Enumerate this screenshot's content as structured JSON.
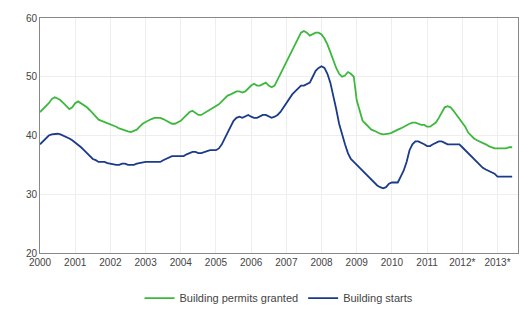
{
  "chart_data": {
    "type": "line",
    "x": [
      2000.0,
      2000.083,
      2000.167,
      2000.25,
      2000.333,
      2000.417,
      2000.5,
      2000.583,
      2000.667,
      2000.75,
      2000.833,
      2000.917,
      2001.0,
      2001.083,
      2001.167,
      2001.25,
      2001.333,
      2001.417,
      2001.5,
      2001.583,
      2001.667,
      2001.75,
      2001.833,
      2001.917,
      2002.0,
      2002.083,
      2002.167,
      2002.25,
      2002.333,
      2002.417,
      2002.5,
      2002.583,
      2002.667,
      2002.75,
      2002.833,
      2002.917,
      2003.0,
      2003.083,
      2003.167,
      2003.25,
      2003.333,
      2003.417,
      2003.5,
      2003.583,
      2003.667,
      2003.75,
      2003.833,
      2003.917,
      2004.0,
      2004.083,
      2004.167,
      2004.25,
      2004.333,
      2004.417,
      2004.5,
      2004.583,
      2004.667,
      2004.75,
      2004.833,
      2004.917,
      2005.0,
      2005.083,
      2005.167,
      2005.25,
      2005.333,
      2005.417,
      2005.5,
      2005.583,
      2005.667,
      2005.75,
      2005.833,
      2005.917,
      2006.0,
      2006.083,
      2006.167,
      2006.25,
      2006.333,
      2006.417,
      2006.5,
      2006.583,
      2006.667,
      2006.75,
      2006.833,
      2006.917,
      2007.0,
      2007.083,
      2007.167,
      2007.25,
      2007.333,
      2007.417,
      2007.5,
      2007.583,
      2007.667,
      2007.75,
      2007.833,
      2007.917,
      2008.0,
      2008.083,
      2008.167,
      2008.25,
      2008.333,
      2008.417,
      2008.5,
      2008.583,
      2008.667,
      2008.75,
      2008.833,
      2008.917,
      2009.0,
      2009.083,
      2009.167,
      2009.25,
      2009.333,
      2009.417,
      2009.5,
      2009.583,
      2009.667,
      2009.75,
      2009.833,
      2009.917,
      2010.0,
      2010.083,
      2010.167,
      2010.25,
      2010.333,
      2010.417,
      2010.5,
      2010.583,
      2010.667,
      2010.75,
      2010.833,
      2010.917,
      2011.0,
      2011.083,
      2011.167,
      2011.25,
      2011.333,
      2011.417,
      2011.5,
      2011.583,
      2011.667,
      2011.75,
      2011.833,
      2011.917,
      2012.0,
      2012.083,
      2012.167,
      2012.25,
      2012.333,
      2012.417,
      2012.5,
      2012.583,
      2012.667,
      2012.75,
      2012.833,
      2012.917,
      2013.0,
      2013.083,
      2013.167,
      2013.25,
      2013.333,
      2013.417
    ],
    "series": [
      {
        "name": "Building permits granted",
        "color": "#3db83d",
        "values": [
          44.0,
          44.5,
          45.0,
          45.5,
          46.2,
          46.5,
          46.3,
          46.0,
          45.5,
          45.0,
          44.5,
          44.8,
          45.5,
          45.8,
          45.5,
          45.2,
          44.8,
          44.3,
          43.8,
          43.2,
          42.7,
          42.5,
          42.3,
          42.2,
          42.0,
          41.8,
          41.5,
          41.2,
          41.0,
          40.8,
          40.7,
          40.6,
          40.8,
          41.0,
          41.5,
          42.0,
          42.3,
          42.6,
          42.8,
          43.0,
          43.0,
          43.0,
          42.8,
          42.5,
          42.2,
          42.0,
          42.0,
          42.2,
          42.5,
          43.0,
          43.5,
          44.0,
          44.2,
          43.8,
          43.5,
          43.5,
          43.8,
          44.2,
          44.5,
          44.8,
          45.0,
          45.3,
          45.8,
          46.3,
          46.8,
          47.0,
          47.2,
          47.5,
          47.5,
          47.3,
          47.5,
          48.0,
          48.5,
          48.8,
          48.5,
          48.5,
          48.8,
          49.0,
          48.5,
          48.2,
          48.5,
          49.5,
          50.5,
          51.5,
          52.5,
          53.5,
          54.5,
          55.5,
          56.5,
          57.5,
          57.8,
          57.5,
          57.0,
          57.3,
          57.5,
          57.5,
          57.2,
          56.5,
          55.5,
          54.2,
          52.8,
          51.5,
          50.5,
          50.0,
          50.2,
          50.8,
          50.5,
          50.0,
          46.0,
          44.0,
          42.5,
          42.0,
          41.5,
          41.0,
          40.8,
          40.5,
          40.3,
          40.2,
          40.2,
          40.3,
          40.5,
          40.8,
          41.0,
          41.2,
          41.5,
          41.8,
          42.0,
          42.2,
          42.2,
          42.0,
          41.8,
          41.8,
          41.5,
          41.5,
          41.8,
          42.2,
          43.0,
          44.0,
          44.8,
          45.0,
          44.8,
          44.2,
          43.5,
          42.8,
          42.0,
          41.5,
          40.5,
          40.0,
          39.5,
          39.2,
          39.0,
          38.8,
          38.5,
          38.2,
          38.0,
          37.8,
          37.8,
          37.8,
          37.8,
          37.8,
          38.0,
          38.0
        ]
      },
      {
        "name": "Building starts",
        "color": "#1a3a8a",
        "values": [
          38.5,
          39.0,
          39.5,
          40.0,
          40.2,
          40.3,
          40.3,
          40.2,
          40.0,
          39.8,
          39.5,
          39.2,
          38.8,
          38.5,
          38.0,
          37.5,
          37.0,
          36.5,
          36.0,
          35.8,
          35.5,
          35.5,
          35.5,
          35.3,
          35.2,
          35.0,
          35.0,
          35.0,
          35.2,
          35.2,
          35.0,
          35.0,
          35.0,
          35.2,
          35.3,
          35.5,
          35.5,
          35.5,
          35.5,
          35.5,
          35.5,
          35.5,
          35.8,
          36.0,
          36.2,
          36.5,
          36.5,
          36.5,
          36.5,
          36.5,
          36.8,
          37.0,
          37.2,
          37.2,
          37.0,
          37.0,
          37.2,
          37.3,
          37.5,
          37.5,
          37.5,
          37.8,
          38.5,
          39.5,
          40.5,
          41.5,
          42.5,
          43.0,
          43.2,
          43.0,
          43.2,
          43.5,
          43.2,
          43.0,
          43.0,
          43.2,
          43.5,
          43.5,
          43.2,
          43.0,
          43.2,
          43.5,
          44.0,
          44.8,
          45.5,
          46.2,
          47.0,
          47.5,
          48.0,
          48.5,
          48.5,
          48.8,
          49.0,
          50.0,
          51.0,
          51.5,
          51.8,
          51.5,
          50.5,
          49.0,
          47.0,
          44.5,
          42.0,
          40.0,
          38.5,
          37.0,
          36.0,
          35.5,
          35.0,
          34.5,
          34.0,
          33.5,
          33.0,
          32.5,
          32.0,
          31.5,
          31.2,
          31.0,
          31.2,
          31.8,
          32.0,
          32.0,
          32.0,
          33.0,
          34.0,
          35.5,
          37.5,
          38.5,
          39.0,
          39.0,
          38.8,
          38.5,
          38.2,
          38.2,
          38.5,
          38.8,
          39.0,
          39.0,
          38.8,
          38.5,
          38.5,
          38.5,
          38.5,
          38.5,
          38.0,
          37.5,
          37.0,
          36.5,
          36.0,
          35.5,
          35.0,
          34.5,
          34.2,
          34.0,
          33.8,
          33.5,
          33.0,
          33.0,
          33.0,
          33.0,
          33.0,
          33.0
        ]
      }
    ],
    "xlim": [
      2000.0,
      2013.583
    ],
    "xticks": [
      2000,
      2001,
      2002,
      2003,
      2004,
      2005,
      2006,
      2007,
      2008,
      2009,
      2010,
      2011,
      {
        "value": 2012,
        "label": "2012*"
      },
      {
        "value": 2013,
        "label": "2013*"
      }
    ],
    "ylim": [
      20,
      60
    ],
    "yticks": [
      20,
      30,
      40,
      50,
      60
    ],
    "grid": true,
    "legend": "bottom"
  }
}
